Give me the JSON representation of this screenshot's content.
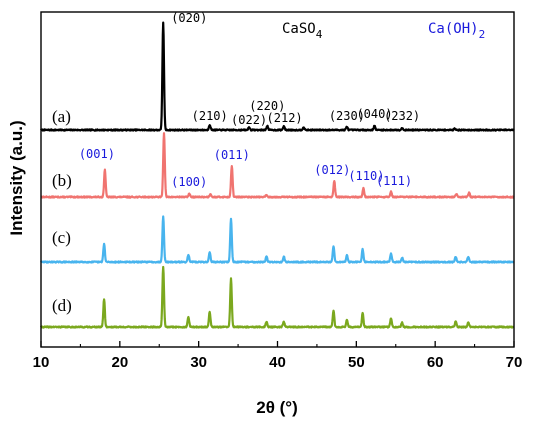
{
  "chart_data": {
    "type": "line",
    "xlabel": "2θ (°)",
    "ylabel": "Intensity (a.u.)",
    "xlim": [
      10,
      70
    ],
    "xticks": [
      "10",
      "20",
      "30",
      "40",
      "50",
      "60",
      "70"
    ],
    "legend": [
      {
        "text": "CaSO",
        "sub": "4",
        "color": "#000000"
      },
      {
        "text": "Ca(OH)",
        "sub": "2",
        "color": "#1a1adc"
      }
    ],
    "series": [
      {
        "name": "(a)",
        "color": "#000000",
        "peaks": [
          [
            25.5,
            100
          ],
          [
            31.4,
            5
          ],
          [
            36.4,
            2.5
          ],
          [
            38.7,
            4
          ],
          [
            40.8,
            3.5
          ],
          [
            43.3,
            2.5
          ],
          [
            48.8,
            3
          ],
          [
            52.3,
            4
          ],
          [
            55.8,
            2
          ],
          [
            62.5,
            1.5
          ]
        ],
        "annotations": [
          {
            "text": "(020)",
            "x": 25.5
          },
          {
            "text": "(210)",
            "x": 31.4
          },
          {
            "text": "(022)",
            "x": 36.4
          },
          {
            "text": "(220)",
            "x": 38.7
          },
          {
            "text": "(212)",
            "x": 40.9
          },
          {
            "text": "(230)",
            "x": 48.8
          },
          {
            "text": "(040)",
            "x": 52.3
          },
          {
            "text": "(232)",
            "x": 55.8
          }
        ]
      },
      {
        "name": "(b)",
        "color": "#f07470",
        "peaks": [
          [
            18.1,
            26
          ],
          [
            25.6,
            60
          ],
          [
            28.8,
            3
          ],
          [
            31.5,
            3
          ],
          [
            34.2,
            29
          ],
          [
            38.6,
            2
          ],
          [
            47.2,
            15
          ],
          [
            50.9,
            8
          ],
          [
            54.4,
            5
          ],
          [
            62.7,
            3
          ],
          [
            64.3,
            4
          ]
        ],
        "annotations": [
          {
            "text": "(001)",
            "x": 18.1
          },
          {
            "text": "(100)",
            "x": 28.8
          },
          {
            "text": "(011)",
            "x": 34.2
          },
          {
            "text": "(012)",
            "x": 47.2
          },
          {
            "text": "(110)",
            "x": 50.9
          },
          {
            "text": "(111)",
            "x": 54.4
          }
        ]
      },
      {
        "name": "(c)",
        "color": "#48b4ee",
        "peaks": [
          [
            18.0,
            17
          ],
          [
            25.5,
            43
          ],
          [
            28.7,
            7
          ],
          [
            31.4,
            9
          ],
          [
            34.1,
            40
          ],
          [
            38.6,
            5
          ],
          [
            40.8,
            5
          ],
          [
            47.1,
            15
          ],
          [
            48.8,
            6
          ],
          [
            50.8,
            12
          ],
          [
            54.4,
            8
          ],
          [
            55.8,
            4
          ],
          [
            62.6,
            5
          ],
          [
            64.2,
            5
          ]
        ],
        "annotations": []
      },
      {
        "name": "(d)",
        "color": "#7ba81e",
        "peaks": [
          [
            18.0,
            26
          ],
          [
            25.5,
            56
          ],
          [
            28.7,
            9
          ],
          [
            31.4,
            14
          ],
          [
            34.1,
            45
          ],
          [
            38.6,
            5
          ],
          [
            40.8,
            5
          ],
          [
            47.1,
            15
          ],
          [
            48.8,
            7
          ],
          [
            50.8,
            13
          ],
          [
            54.4,
            8
          ],
          [
            55.8,
            4
          ],
          [
            62.6,
            5
          ],
          [
            64.2,
            4
          ]
        ],
        "annotations": []
      }
    ]
  }
}
